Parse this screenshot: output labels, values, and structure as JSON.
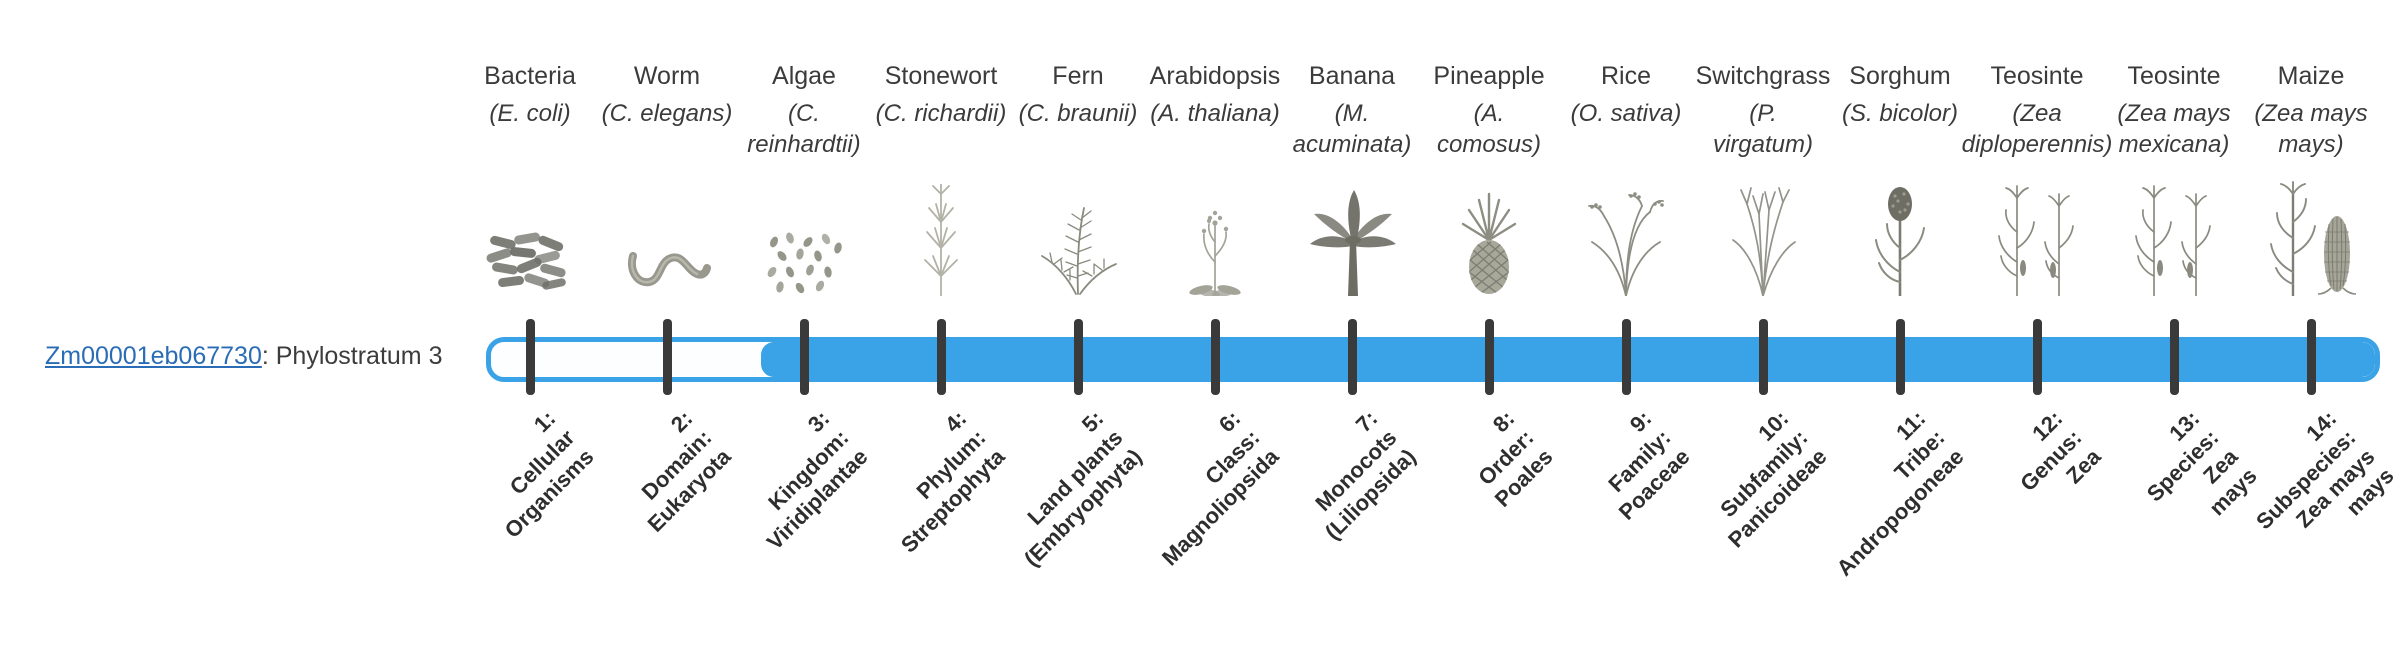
{
  "gene": {
    "id": "Zm00001eb067730",
    "suffix": ": Phylostratum 3",
    "phylostratum": 3
  },
  "colors": {
    "accent": "#3aa2e6",
    "tick": "#3a3a3a",
    "text": "#3c3c3c",
    "link": "#2a6db6",
    "illustration": "#8c8c81"
  },
  "bar": {
    "filled_from_stratum": 3,
    "total_strata": 14
  },
  "organisms": [
    {
      "common": "Bacteria",
      "sci": "(E. coli)",
      "icon": "bacteria-icon",
      "stratum": "1:\nCellular\nOrganisms"
    },
    {
      "common": "Worm",
      "sci": "(C. elegans)",
      "icon": "worm-icon",
      "stratum": "2:\nDomain:\nEukaryota"
    },
    {
      "common": "Algae",
      "sci": "(C.\nreinhardtii)",
      "icon": "algae-icon",
      "stratum": "3:\nKingdom:\nViridiplantae"
    },
    {
      "common": "Stonewort",
      "sci": "(C. richardii)",
      "icon": "stonewort-icon",
      "stratum": "4:\nPhylum:\nStreptophyta"
    },
    {
      "common": "Fern",
      "sci": "(C. braunii)",
      "icon": "fern-icon",
      "stratum": "5:\nLand plants\n(Embryophyta)"
    },
    {
      "common": "Arabidopsis",
      "sci": "(A. thaliana)",
      "icon": "arabidopsis-icon",
      "stratum": "6:\nClass:\nMagnoliopsida"
    },
    {
      "common": "Banana",
      "sci": "(M.\nacuminata)",
      "icon": "banana-palm-icon",
      "stratum": "7:\nMonocots\n(Liliopsida)"
    },
    {
      "common": "Pineapple",
      "sci": "(A.\ncomosus)",
      "icon": "pineapple-icon",
      "stratum": "8:\nOrder:\nPoales"
    },
    {
      "common": "Rice",
      "sci": "(O. sativa)",
      "icon": "rice-icon",
      "stratum": "9:\nFamily:\nPoaceae"
    },
    {
      "common": "Switchgrass",
      "sci": "(P.\nvirgatum)",
      "icon": "switchgrass-icon",
      "stratum": "10:\nSubfamily:\nPanicoideae"
    },
    {
      "common": "Sorghum",
      "sci": "(S. bicolor)",
      "icon": "sorghum-icon",
      "stratum": "11:\nTribe:\nAndropogoneae"
    },
    {
      "common": "Teosinte",
      "sci": "(Zea\ndiploperennis)",
      "icon": "teosinte-icon",
      "stratum": "12:\nGenus:\nZea"
    },
    {
      "common": "Teosinte",
      "sci": "(Zea mays\nmexicana)",
      "icon": "teosinte-icon",
      "stratum": "13:\nSpecies:\nZea\nmays"
    },
    {
      "common": "Maize",
      "sci": "(Zea mays\nmays)",
      "icon": "maize-icon",
      "stratum": "14:\nSubspecies:\nZea mays\nmays"
    }
  ]
}
